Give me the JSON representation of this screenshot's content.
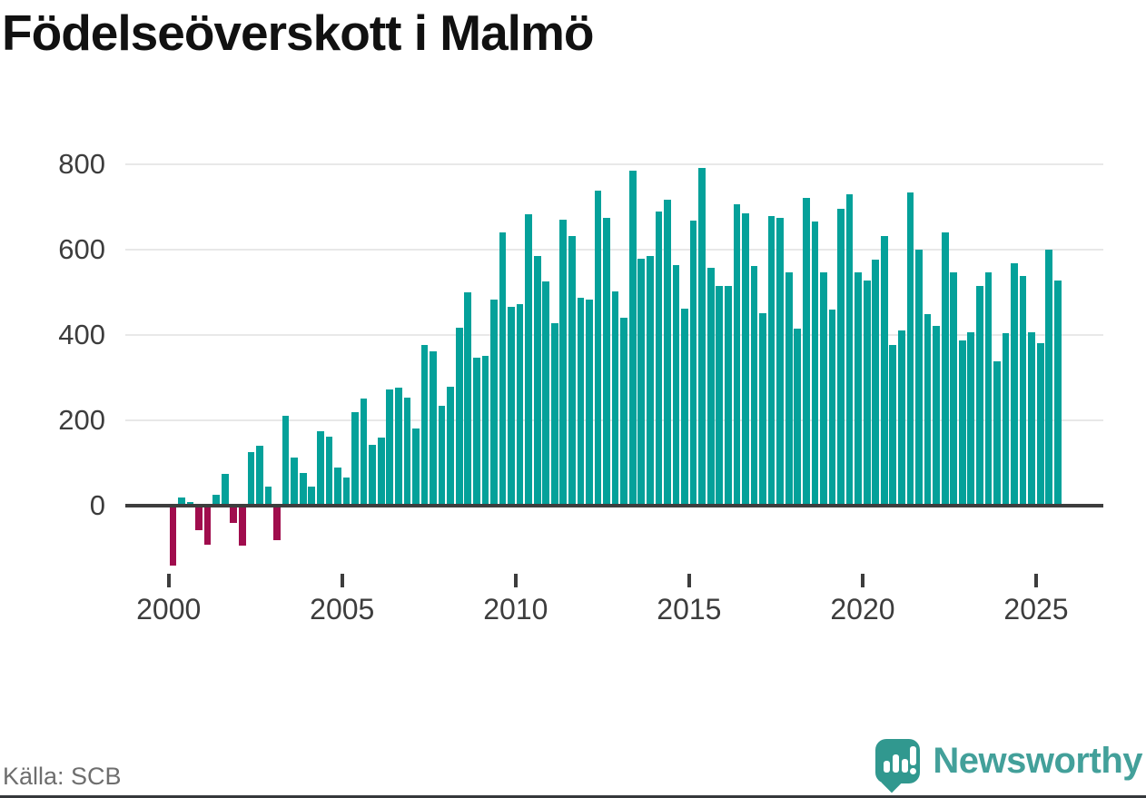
{
  "title": "Födelseöverskott i Malmö",
  "source": "Källa: SCB",
  "logo": {
    "brand": "Newsworthy",
    "icon": "bar-chart-speech-bubble-icon",
    "color": "#43a09a",
    "icon_color": "#31988f"
  },
  "colors": {
    "positive": "#04a19a",
    "negative": "#a00d4d",
    "axis": "#3d3d3d",
    "grid": "#e8e8e8",
    "tick_text": "#3d3d3d"
  },
  "chart_data": {
    "type": "bar",
    "title": "Födelseöverskott i Malmö",
    "xlabel": "",
    "ylabel": "",
    "ylim": [
      -200,
      800
    ],
    "grid": "horizontal",
    "yticks": [
      0,
      200,
      400,
      600,
      800
    ],
    "xticks": [
      "2000",
      "2005",
      "2010",
      "2015",
      "2020",
      "2025"
    ],
    "series_note": "quarterly birth surplus, 2000 Q1 - 2025 Q3; positive bars teal, negative bars crimson",
    "quarters": [
      {
        "t": "2000 Q1",
        "v": -140
      },
      {
        "t": "2000 Q2",
        "v": 20
      },
      {
        "t": "2000 Q3",
        "v": 8
      },
      {
        "t": "2000 Q4",
        "v": -58
      },
      {
        "t": "2001 Q1",
        "v": -91
      },
      {
        "t": "2001 Q2",
        "v": 26
      },
      {
        "t": "2001 Q3",
        "v": 74
      },
      {
        "t": "2001 Q4",
        "v": -40
      },
      {
        "t": "2002 Q1",
        "v": -93
      },
      {
        "t": "2002 Q2",
        "v": 125
      },
      {
        "t": "2002 Q3",
        "v": 140
      },
      {
        "t": "2002 Q4",
        "v": 45
      },
      {
        "t": "2003 Q1",
        "v": -81
      },
      {
        "t": "2003 Q2",
        "v": 210
      },
      {
        "t": "2003 Q3",
        "v": 113
      },
      {
        "t": "2003 Q4",
        "v": 77
      },
      {
        "t": "2004 Q1",
        "v": 45
      },
      {
        "t": "2004 Q2",
        "v": 175
      },
      {
        "t": "2004 Q3",
        "v": 161
      },
      {
        "t": "2004 Q4",
        "v": 90
      },
      {
        "t": "2005 Q1",
        "v": 65
      },
      {
        "t": "2005 Q2",
        "v": 220
      },
      {
        "t": "2005 Q3",
        "v": 251
      },
      {
        "t": "2005 Q4",
        "v": 143
      },
      {
        "t": "2006 Q1",
        "v": 160
      },
      {
        "t": "2006 Q2",
        "v": 273
      },
      {
        "t": "2006 Q3",
        "v": 276
      },
      {
        "t": "2006 Q4",
        "v": 253
      },
      {
        "t": "2007 Q1",
        "v": 181
      },
      {
        "t": "2007 Q2",
        "v": 377
      },
      {
        "t": "2007 Q3",
        "v": 362
      },
      {
        "t": "2007 Q4",
        "v": 235
      },
      {
        "t": "2008 Q1",
        "v": 279
      },
      {
        "t": "2008 Q2",
        "v": 416
      },
      {
        "t": "2008 Q3",
        "v": 500
      },
      {
        "t": "2008 Q4",
        "v": 347
      },
      {
        "t": "2009 Q1",
        "v": 352
      },
      {
        "t": "2009 Q2",
        "v": 483
      },
      {
        "t": "2009 Q3",
        "v": 641
      },
      {
        "t": "2009 Q4",
        "v": 467
      },
      {
        "t": "2010 Q1",
        "v": 472
      },
      {
        "t": "2010 Q2",
        "v": 682
      },
      {
        "t": "2010 Q3",
        "v": 586
      },
      {
        "t": "2010 Q4",
        "v": 525
      },
      {
        "t": "2011 Q1",
        "v": 427
      },
      {
        "t": "2011 Q2",
        "v": 670
      },
      {
        "t": "2011 Q3",
        "v": 631
      },
      {
        "t": "2011 Q4",
        "v": 487
      },
      {
        "t": "2012 Q1",
        "v": 484
      },
      {
        "t": "2012 Q2",
        "v": 738
      },
      {
        "t": "2012 Q3",
        "v": 675
      },
      {
        "t": "2012 Q4",
        "v": 502
      },
      {
        "t": "2013 Q1",
        "v": 440
      },
      {
        "t": "2013 Q2",
        "v": 785
      },
      {
        "t": "2013 Q3",
        "v": 578
      },
      {
        "t": "2013 Q4",
        "v": 586
      },
      {
        "t": "2014 Q1",
        "v": 689
      },
      {
        "t": "2014 Q2",
        "v": 717
      },
      {
        "t": "2014 Q3",
        "v": 564
      },
      {
        "t": "2014 Q4",
        "v": 461
      },
      {
        "t": "2015 Q1",
        "v": 668
      },
      {
        "t": "2015 Q2",
        "v": 792
      },
      {
        "t": "2015 Q3",
        "v": 558
      },
      {
        "t": "2015 Q4",
        "v": 515
      },
      {
        "t": "2016 Q1",
        "v": 515
      },
      {
        "t": "2016 Q2",
        "v": 707
      },
      {
        "t": "2016 Q3",
        "v": 686
      },
      {
        "t": "2016 Q4",
        "v": 561
      },
      {
        "t": "2017 Q1",
        "v": 452
      },
      {
        "t": "2017 Q2",
        "v": 678
      },
      {
        "t": "2017 Q3",
        "v": 675
      },
      {
        "t": "2017 Q4",
        "v": 546
      },
      {
        "t": "2018 Q1",
        "v": 415
      },
      {
        "t": "2018 Q2",
        "v": 721
      },
      {
        "t": "2018 Q3",
        "v": 665
      },
      {
        "t": "2018 Q4",
        "v": 546
      },
      {
        "t": "2019 Q1",
        "v": 459
      },
      {
        "t": "2019 Q2",
        "v": 696
      },
      {
        "t": "2019 Q3",
        "v": 730
      },
      {
        "t": "2019 Q4",
        "v": 546
      },
      {
        "t": "2020 Q1",
        "v": 528
      },
      {
        "t": "2020 Q2",
        "v": 576
      },
      {
        "t": "2020 Q3",
        "v": 631
      },
      {
        "t": "2020 Q4",
        "v": 376
      },
      {
        "t": "2021 Q1",
        "v": 411
      },
      {
        "t": "2021 Q2",
        "v": 733
      },
      {
        "t": "2021 Q3",
        "v": 599
      },
      {
        "t": "2021 Q4",
        "v": 450
      },
      {
        "t": "2022 Q1",
        "v": 422
      },
      {
        "t": "2022 Q2",
        "v": 641
      },
      {
        "t": "2022 Q3",
        "v": 546
      },
      {
        "t": "2022 Q4",
        "v": 387
      },
      {
        "t": "2023 Q1",
        "v": 406
      },
      {
        "t": "2023 Q2",
        "v": 514
      },
      {
        "t": "2023 Q3",
        "v": 546
      },
      {
        "t": "2023 Q4",
        "v": 339
      },
      {
        "t": "2024 Q1",
        "v": 404
      },
      {
        "t": "2024 Q2",
        "v": 569
      },
      {
        "t": "2024 Q3",
        "v": 539
      },
      {
        "t": "2024 Q4",
        "v": 406
      },
      {
        "t": "2025 Q1",
        "v": 381
      },
      {
        "t": "2025 Q2",
        "v": 601
      },
      {
        "t": "2025 Q3",
        "v": 527
      }
    ]
  }
}
